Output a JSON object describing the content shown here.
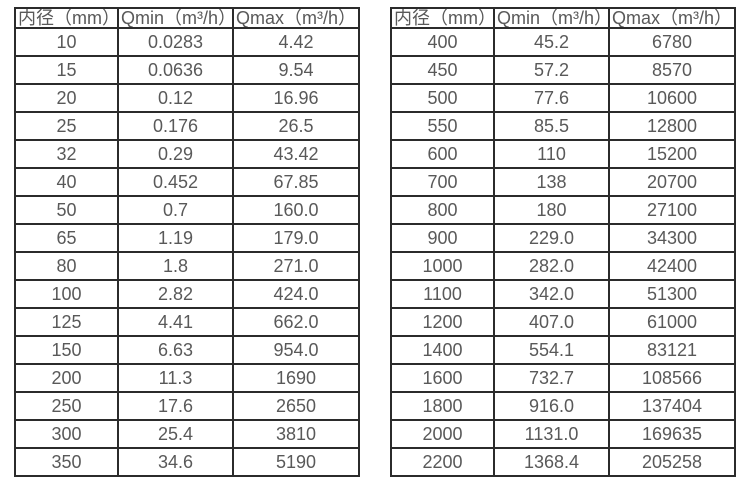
{
  "page": {
    "background_color": "#ffffff",
    "border_color": "#2b2b2b",
    "text_color": "#595959"
  },
  "tables": [
    {
      "name": "small-diameter-spec-table",
      "headers": [
        "内径（mm）",
        "Qmin（m³/h）",
        "Qmax（m³/h）"
      ],
      "rows": [
        [
          "10",
          "0.0283",
          "4.42"
        ],
        [
          "15",
          "0.0636",
          "9.54"
        ],
        [
          "20",
          "0.12",
          "16.96"
        ],
        [
          "25",
          "0.176",
          "26.5"
        ],
        [
          "32",
          "0.29",
          "43.42"
        ],
        [
          "40",
          "0.452",
          "67.85"
        ],
        [
          "50",
          "0.7",
          "160.0"
        ],
        [
          "65",
          "1.19",
          "179.0"
        ],
        [
          "80",
          "1.8",
          "271.0"
        ],
        [
          "100",
          "2.82",
          "424.0"
        ],
        [
          "125",
          "4.41",
          "662.0"
        ],
        [
          "150",
          "6.63",
          "954.0"
        ],
        [
          "200",
          "11.3",
          "1690"
        ],
        [
          "250",
          "17.6",
          "2650"
        ],
        [
          "300",
          "25.4",
          "3810"
        ],
        [
          "350",
          "34.6",
          "5190"
        ]
      ]
    },
    {
      "name": "large-diameter-spec-table",
      "headers": [
        "内径（mm）",
        "Qmin（m³/h）",
        "Qmax（m³/h）"
      ],
      "rows": [
        [
          "400",
          "45.2",
          "6780"
        ],
        [
          "450",
          "57.2",
          "8570"
        ],
        [
          "500",
          "77.6",
          "10600"
        ],
        [
          "550",
          "85.5",
          "12800"
        ],
        [
          "600",
          "110",
          "15200"
        ],
        [
          "700",
          "138",
          "20700"
        ],
        [
          "800",
          "180",
          "27100"
        ],
        [
          "900",
          "229.0",
          "34300"
        ],
        [
          "1000",
          "282.0",
          "42400"
        ],
        [
          "1100",
          "342.0",
          "51300"
        ],
        [
          "1200",
          "407.0",
          "61000"
        ],
        [
          "1400",
          "554.1",
          "83121"
        ],
        [
          "1600",
          "732.7",
          "108566"
        ],
        [
          "1800",
          "916.0",
          "137404"
        ],
        [
          "2000",
          "1131.0",
          "169635"
        ],
        [
          "2200",
          "1368.4",
          "205258"
        ]
      ]
    }
  ]
}
